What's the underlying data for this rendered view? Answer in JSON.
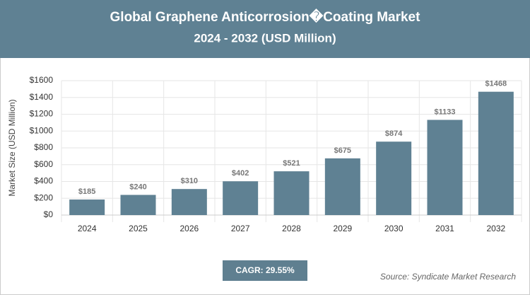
{
  "chart_data": {
    "type": "bar",
    "title": "Global Graphene Anticorrosion�Coating Market",
    "subtitle": "2024 - 2032 (USD Million)",
    "y_label": "Market Size (USD Million)",
    "categories": [
      "2024",
      "2025",
      "2026",
      "2027",
      "2028",
      "2029",
      "2030",
      "2031",
      "2032"
    ],
    "values": [
      185,
      240,
      310,
      402,
      521,
      675,
      874,
      1133,
      1468
    ],
    "value_labels": [
      "$185",
      "$240",
      "$310",
      "$402",
      "$521",
      "$675",
      "$874",
      "$1133",
      "$1468"
    ],
    "color": "#5f8193",
    "ylim": [
      0,
      1600
    ],
    "yticks": [
      {
        "value": 0,
        "label": "$0"
      },
      {
        "value": 200,
        "label": "$200"
      },
      {
        "value": 400,
        "label": "$400"
      },
      {
        "value": 600,
        "label": "$600"
      },
      {
        "value": 800,
        "label": "$800"
      },
      {
        "value": 1000,
        "label": "$1000"
      },
      {
        "value": 1200,
        "label": "$1200"
      },
      {
        "value": 1400,
        "label": "$1400"
      },
      {
        "value": 1600,
        "label": "$1600"
      }
    ],
    "grid": true,
    "cagr": "CAGR: 29.55%",
    "source": "Source: Syndicate Market Research"
  }
}
